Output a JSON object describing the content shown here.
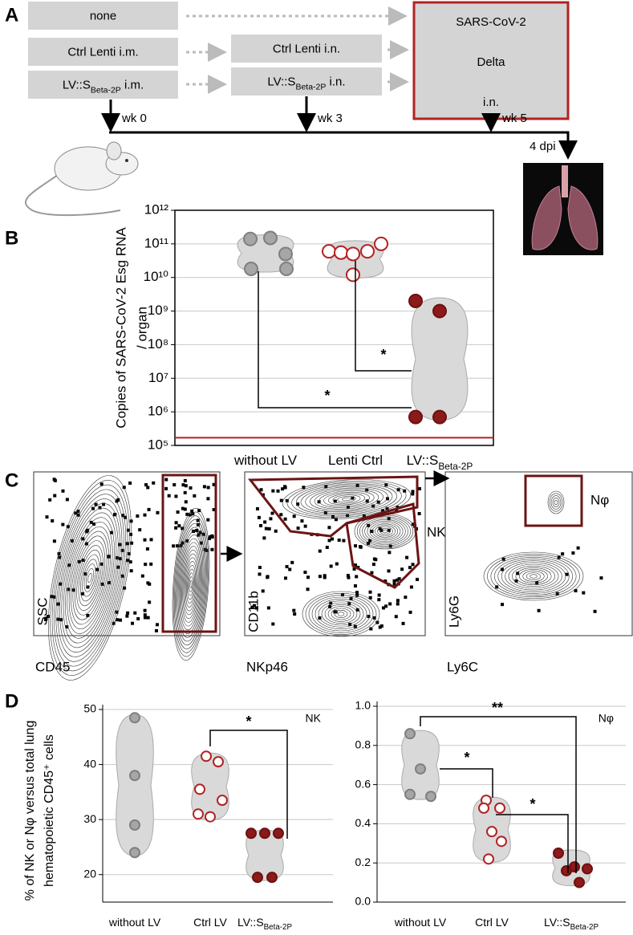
{
  "panel_labels": [
    "A",
    "B",
    "C",
    "D"
  ],
  "panel_a": {
    "boxes": [
      {
        "text": "none"
      },
      {
        "text": "Ctrl Lenti i.m."
      },
      {
        "text": "LV::S",
        "sub": "Beta-2P",
        "suffix": " i.m."
      },
      {
        "text": "Ctrl Lenti i.n."
      },
      {
        "text": "LV::S",
        "sub": "Beta-2P",
        "suffix": " i.n."
      }
    ],
    "challenge": [
      "SARS-CoV-2",
      "Delta",
      "i.n."
    ],
    "timepoints": [
      "wk 0",
      "wk 3",
      "wk 5"
    ],
    "endpoint": "4 dpi"
  },
  "panel_c": {
    "plots": [
      {
        "x_label": "CD45",
        "y_label": "SSC"
      },
      {
        "x_label": "NKp46",
        "y_label": "CD11b",
        "gate_label": "NK"
      },
      {
        "x_label": "Ly6C",
        "y_label": "Ly6G",
        "gate_label": "Nφ"
      }
    ]
  },
  "panel_d": {
    "ylabel": [
      "% of NK or Nφ versus total lung",
      "hematopoietic CD45⁺ cells"
    ]
  },
  "chart_data": [
    {
      "type": "violin",
      "ylabel": [
        "Copies of SARS-CoV-2 Esg RNA",
        "/ organ"
      ],
      "categories": [
        "without LV",
        "Lenti Ctrl",
        "LV::S"
      ],
      "category_subscripts": [
        null,
        null,
        "Beta-2P"
      ],
      "log_scale": true,
      "ylim": [
        100000,
        1000000000000
      ],
      "yticks": [
        {
          "value": 100000,
          "label": "10⁵"
        },
        {
          "value": 1000000,
          "label": "10⁶"
        },
        {
          "value": 10000000,
          "label": "10⁷"
        },
        {
          "value": 100000000,
          "label": "10⁸"
        },
        {
          "value": 1000000000,
          "label": "10⁹"
        },
        {
          "value": 10000000000,
          "label": "10¹⁰"
        },
        {
          "value": 100000000000,
          "label": "10¹¹"
        },
        {
          "value": 1000000000000,
          "label": "10¹²"
        }
      ],
      "grid": true,
      "detection_limit": 170000,
      "detection_limit_color": "#b22222",
      "series": [
        {
          "color": "#a6a6a6",
          "edgecolor": "#7f7f7f",
          "values": [
            140000000000,
            150000000000,
            50000000000,
            18000000000,
            18000000000
          ]
        },
        {
          "color": "#ffffff",
          "edgecolor": "#b22222",
          "values": [
            60000000000,
            55000000000,
            50000000000,
            60000000000,
            100000000000,
            12000000000
          ]
        },
        {
          "color": "#8b1a1a",
          "edgecolor": "#6e1010",
          "values": [
            2000000000,
            1000000000,
            700000,
            700000
          ]
        }
      ],
      "annotations": [
        "*",
        "*"
      ]
    },
    {
      "type": "violin",
      "title": "NK",
      "categories": [
        "without LV",
        "Ctrl LV",
        "LV::S"
      ],
      "category_subscripts": [
        null,
        null,
        "Beta-2P"
      ],
      "ylim": [
        15,
        50
      ],
      "yticks": [
        20,
        30,
        40,
        50
      ],
      "grid": true,
      "series": [
        {
          "color": "#a6a6a6",
          "edgecolor": "#7f7f7f",
          "values": [
            48.5,
            38,
            29,
            24
          ]
        },
        {
          "color": "#ffffff",
          "edgecolor": "#b22222",
          "values": [
            41.5,
            40.5,
            35.5,
            33.5,
            31,
            30.5
          ]
        },
        {
          "color": "#8b1a1a",
          "edgecolor": "#6e1010",
          "values": [
            27.5,
            27.5,
            27.5,
            19.5,
            19.5
          ]
        }
      ],
      "annotations": [
        "*"
      ]
    },
    {
      "type": "violin",
      "title": "Nφ",
      "categories": [
        "without LV",
        "Ctrl LV",
        "LV::S"
      ],
      "category_subscripts": [
        null,
        null,
        "Beta-2P"
      ],
      "ylim": [
        0,
        1
      ],
      "yticks": [
        {
          "value": 0,
          "label": "0.0"
        },
        {
          "value": 0.2,
          "label": "0.2"
        },
        {
          "value": 0.4,
          "label": "0.4"
        },
        {
          "value": 0.6,
          "label": "0.6"
        },
        {
          "value": 0.8,
          "label": "0.8"
        },
        {
          "value": 1,
          "label": "1.0"
        }
      ],
      "grid": true,
      "series": [
        {
          "color": "#a6a6a6",
          "edgecolor": "#7f7f7f",
          "values": [
            0.86,
            0.68,
            0.55,
            0.54
          ]
        },
        {
          "color": "#ffffff",
          "edgecolor": "#b22222",
          "values": [
            0.52,
            0.48,
            0.48,
            0.36,
            0.31,
            0.22
          ]
        },
        {
          "color": "#8b1a1a",
          "edgecolor": "#6e1010",
          "values": [
            0.25,
            0.18,
            0.17,
            0.16,
            0.1
          ]
        }
      ],
      "annotations": [
        "**",
        "*",
        "*"
      ]
    }
  ]
}
